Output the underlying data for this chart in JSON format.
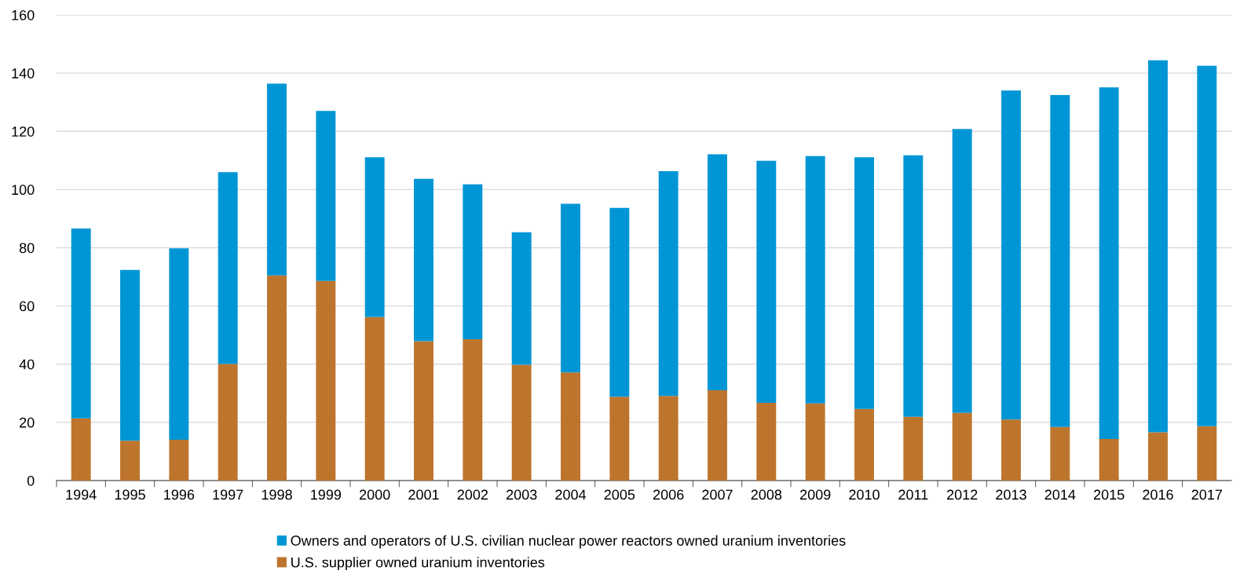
{
  "chart_data": {
    "type": "bar",
    "stacked": true,
    "categories": [
      "1994",
      "1995",
      "1996",
      "1997",
      "1998",
      "1999",
      "2000",
      "2001",
      "2002",
      "2003",
      "2004",
      "2005",
      "2006",
      "2007",
      "2008",
      "2009",
      "2010",
      "2011",
      "2012",
      "2013",
      "2014",
      "2015",
      "2016",
      "2017"
    ],
    "series": [
      {
        "name": "U.S. supplier owned uranium inventories",
        "color": "#bd752d",
        "values": [
          21.4,
          13.7,
          14.0,
          40.1,
          70.5,
          68.6,
          56.2,
          47.9,
          48.6,
          39.8,
          37.2,
          28.8,
          29.1,
          31.0,
          26.7,
          26.5,
          24.6,
          21.9,
          23.3,
          21.0,
          18.4,
          14.3,
          16.6,
          18.7
        ]
      },
      {
        "name": "Owners and operators of U.S. civilian nuclear power reactors owned uranium inventories",
        "color": "#0096d6",
        "values": [
          65.2,
          58.7,
          65.8,
          65.9,
          65.9,
          58.4,
          54.9,
          55.8,
          53.2,
          45.5,
          57.9,
          64.9,
          77.2,
          81.1,
          83.2,
          85.0,
          86.5,
          89.9,
          97.5,
          113.0,
          114.1,
          120.8,
          127.8,
          123.8
        ]
      }
    ],
    "ylim": [
      0,
      160
    ],
    "yticks": [
      0,
      20,
      40,
      60,
      80,
      100,
      120,
      140,
      160
    ],
    "grid": "y",
    "legend": "bottom"
  }
}
